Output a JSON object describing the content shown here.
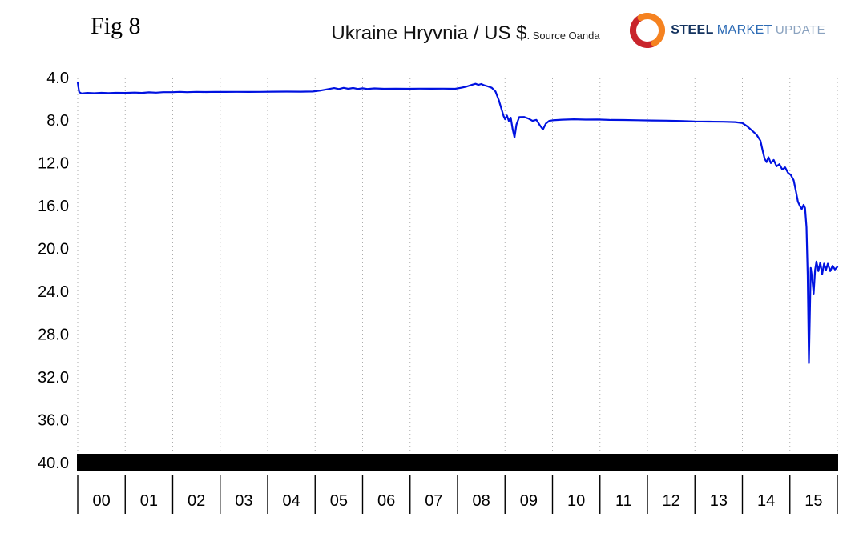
{
  "header": {
    "fig_label": "Fig 8",
    "title": "Ukraine Hryvnia / US $",
    "source": ". Source Oanda"
  },
  "logo": {
    "word1": "STEEL",
    "word2": "MARKET",
    "word3": "UPDATE",
    "icon": "sun-swoosh-icon",
    "colors": {
      "steel": "#14335f",
      "market": "#2e6cb5",
      "update": "#8aa2bf",
      "arc_red": "#c9252c",
      "arc_orange": "#f58220"
    }
  },
  "chart_data": {
    "type": "line",
    "title": "Ukraine Hryvnia / US $",
    "source_note": ". Source Oanda",
    "y_axis_inverted": true,
    "ylim": [
      4,
      40
    ],
    "y_ticks": [
      4,
      8,
      12,
      16,
      20,
      24,
      28,
      32,
      36,
      40
    ],
    "y_tick_labels": [
      "4.0",
      "8.0",
      "12.0",
      "16.0",
      "20.0",
      "24.0",
      "28.0",
      "32.0",
      "36.0",
      "40.0"
    ],
    "x_range": [
      2000,
      2016
    ],
    "x_categories": [
      "00",
      "01",
      "02",
      "03",
      "04",
      "05",
      "06",
      "07",
      "08",
      "09",
      "10",
      "11",
      "12",
      "13",
      "14",
      "15"
    ],
    "grid_on": true,
    "grid_color": "#ababab",
    "line_color": "#0012e0",
    "baseline_bar_color": "#000000",
    "points": [
      [
        2000.0,
        4.45
      ],
      [
        2000.03,
        5.35
      ],
      [
        2000.08,
        5.48
      ],
      [
        2000.2,
        5.43
      ],
      [
        2000.35,
        5.46
      ],
      [
        2000.5,
        5.42
      ],
      [
        2000.65,
        5.45
      ],
      [
        2000.8,
        5.42
      ],
      [
        2001.0,
        5.43
      ],
      [
        2001.2,
        5.4
      ],
      [
        2001.35,
        5.43
      ],
      [
        2001.5,
        5.38
      ],
      [
        2001.65,
        5.41
      ],
      [
        2001.8,
        5.36
      ],
      [
        2002.0,
        5.36
      ],
      [
        2002.15,
        5.33
      ],
      [
        2002.3,
        5.36
      ],
      [
        2002.5,
        5.33
      ],
      [
        2002.7,
        5.35
      ],
      [
        2002.9,
        5.33
      ],
      [
        2003.1,
        5.34
      ],
      [
        2003.35,
        5.33
      ],
      [
        2003.6,
        5.34
      ],
      [
        2003.85,
        5.33
      ],
      [
        2004.1,
        5.32
      ],
      [
        2004.4,
        5.31
      ],
      [
        2004.7,
        5.32
      ],
      [
        2004.95,
        5.3
      ],
      [
        2005.1,
        5.22
      ],
      [
        2005.25,
        5.1
      ],
      [
        2005.4,
        4.98
      ],
      [
        2005.5,
        5.07
      ],
      [
        2005.6,
        4.96
      ],
      [
        2005.7,
        5.05
      ],
      [
        2005.8,
        4.97
      ],
      [
        2005.9,
        5.06
      ],
      [
        2006.0,
        5.0
      ],
      [
        2006.1,
        5.06
      ],
      [
        2006.25,
        5.01
      ],
      [
        2006.45,
        5.05
      ],
      [
        2006.7,
        5.03
      ],
      [
        2006.95,
        5.05
      ],
      [
        2007.2,
        5.03
      ],
      [
        2007.45,
        5.04
      ],
      [
        2007.7,
        5.03
      ],
      [
        2007.95,
        5.05
      ],
      [
        2008.1,
        4.93
      ],
      [
        2008.2,
        4.82
      ],
      [
        2008.3,
        4.68
      ],
      [
        2008.38,
        4.58
      ],
      [
        2008.44,
        4.68
      ],
      [
        2008.5,
        4.6
      ],
      [
        2008.56,
        4.72
      ],
      [
        2008.64,
        4.82
      ],
      [
        2008.72,
        4.95
      ],
      [
        2008.8,
        5.3
      ],
      [
        2008.87,
        6.1
      ],
      [
        2008.93,
        7.0
      ],
      [
        2008.97,
        7.6
      ],
      [
        2009.0,
        7.9
      ],
      [
        2009.04,
        7.55
      ],
      [
        2009.08,
        8.05
      ],
      [
        2009.12,
        7.75
      ],
      [
        2009.16,
        8.8
      ],
      [
        2009.2,
        9.6
      ],
      [
        2009.24,
        8.4
      ],
      [
        2009.3,
        7.7
      ],
      [
        2009.4,
        7.68
      ],
      [
        2009.5,
        7.85
      ],
      [
        2009.58,
        8.05
      ],
      [
        2009.66,
        7.95
      ],
      [
        2009.74,
        8.5
      ],
      [
        2009.8,
        8.85
      ],
      [
        2009.86,
        8.3
      ],
      [
        2009.93,
        8.05
      ],
      [
        2010.0,
        8.0
      ],
      [
        2010.2,
        7.94
      ],
      [
        2010.45,
        7.9
      ],
      [
        2010.7,
        7.93
      ],
      [
        2010.95,
        7.92
      ],
      [
        2011.2,
        7.96
      ],
      [
        2011.5,
        7.97
      ],
      [
        2011.8,
        7.99
      ],
      [
        2012.1,
        8.01
      ],
      [
        2012.4,
        8.03
      ],
      [
        2012.7,
        8.06
      ],
      [
        2013.0,
        8.1
      ],
      [
        2013.3,
        8.12
      ],
      [
        2013.6,
        8.13
      ],
      [
        2013.85,
        8.16
      ],
      [
        2014.0,
        8.25
      ],
      [
        2014.1,
        8.55
      ],
      [
        2014.2,
        8.95
      ],
      [
        2014.3,
        9.35
      ],
      [
        2014.38,
        9.9
      ],
      [
        2014.43,
        10.9
      ],
      [
        2014.47,
        11.6
      ],
      [
        2014.51,
        11.9
      ],
      [
        2014.55,
        11.45
      ],
      [
        2014.6,
        12.0
      ],
      [
        2014.66,
        11.7
      ],
      [
        2014.72,
        12.3
      ],
      [
        2014.78,
        12.1
      ],
      [
        2014.84,
        12.6
      ],
      [
        2014.9,
        12.4
      ],
      [
        2014.96,
        12.9
      ],
      [
        2015.02,
        13.1
      ],
      [
        2015.08,
        13.6
      ],
      [
        2015.13,
        14.7
      ],
      [
        2015.17,
        15.6
      ],
      [
        2015.21,
        16.0
      ],
      [
        2015.25,
        16.3
      ],
      [
        2015.29,
        15.9
      ],
      [
        2015.32,
        16.2
      ],
      [
        2015.35,
        18.0
      ],
      [
        2015.375,
        22.5
      ],
      [
        2015.4,
        30.7
      ],
      [
        2015.42,
        26.5
      ],
      [
        2015.44,
        21.8
      ],
      [
        2015.47,
        22.8
      ],
      [
        2015.5,
        24.2
      ],
      [
        2015.53,
        22.0
      ],
      [
        2015.56,
        21.2
      ],
      [
        2015.6,
        22.1
      ],
      [
        2015.64,
        21.3
      ],
      [
        2015.68,
        22.4
      ],
      [
        2015.72,
        21.4
      ],
      [
        2015.76,
        22.0
      ],
      [
        2015.8,
        21.4
      ],
      [
        2015.85,
        22.1
      ],
      [
        2015.9,
        21.6
      ],
      [
        2015.95,
        21.95
      ],
      [
        2016.0,
        21.7
      ]
    ]
  }
}
